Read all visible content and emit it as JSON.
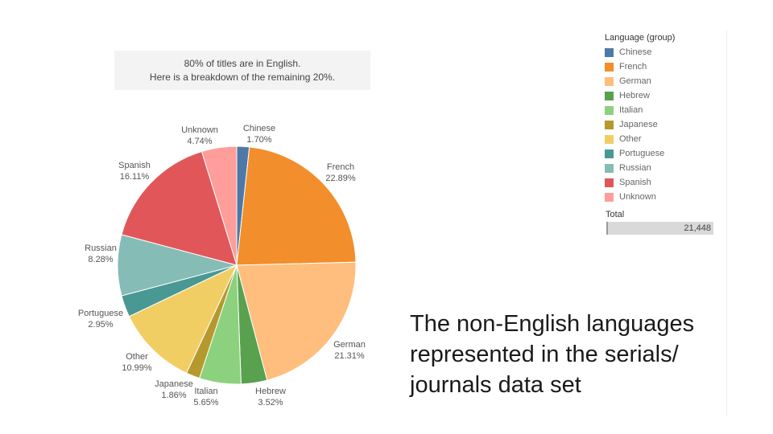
{
  "subtitle": {
    "line1": "80% of titles are in English.",
    "line2": "Here is a breakdown of the remaining 20%."
  },
  "legend": {
    "title": "Language (group)",
    "items": [
      {
        "label": "Chinese",
        "color": "#4e79a7"
      },
      {
        "label": "French",
        "color": "#f28e2b"
      },
      {
        "label": "German",
        "color": "#ffbe7d"
      },
      {
        "label": "Hebrew",
        "color": "#59a14f"
      },
      {
        "label": "Italian",
        "color": "#8cd17d"
      },
      {
        "label": "Japanese",
        "color": "#b6992d"
      },
      {
        "label": "Other",
        "color": "#f1ce63"
      },
      {
        "label": "Portuguese",
        "color": "#499894"
      },
      {
        "label": "Russian",
        "color": "#86bcb6"
      },
      {
        "label": "Spanish",
        "color": "#e15759"
      },
      {
        "label": "Unknown",
        "color": "#ff9d9a"
      }
    ]
  },
  "total": {
    "label": "Total",
    "value": "21,448"
  },
  "caption": {
    "line1": "The non-English languages",
    "line2": "represented in the serials/",
    "line3": "journals data set"
  },
  "chart_data": {
    "type": "pie",
    "slices": [
      {
        "category": "Chinese",
        "value": 1.7,
        "label": "1.70%",
        "color": "#4e79a7"
      },
      {
        "category": "French",
        "value": 22.89,
        "label": "22.89%",
        "color": "#f28e2b"
      },
      {
        "category": "German",
        "value": 21.31,
        "label": "21.31%",
        "color": "#ffbe7d"
      },
      {
        "category": "Hebrew",
        "value": 3.52,
        "label": "3.52%",
        "color": "#59a14f"
      },
      {
        "category": "Italian",
        "value": 5.65,
        "label": "5.65%",
        "color": "#8cd17d"
      },
      {
        "category": "Japanese",
        "value": 1.86,
        "label": "1.86%",
        "color": "#b6992d"
      },
      {
        "category": "Other",
        "value": 10.99,
        "label": "10.99%",
        "color": "#f1ce63"
      },
      {
        "category": "Portuguese",
        "value": 2.95,
        "label": "2.95%",
        "color": "#499894"
      },
      {
        "category": "Russian",
        "value": 8.28,
        "label": "8.28%",
        "color": "#86bcb6"
      },
      {
        "category": "Spanish",
        "value": 16.11,
        "label": "16.11%",
        "color": "#e15759"
      },
      {
        "category": "Unknown",
        "value": 4.74,
        "label": "4.74%",
        "color": "#ff9d9a"
      }
    ],
    "legend_position": "top-right"
  }
}
